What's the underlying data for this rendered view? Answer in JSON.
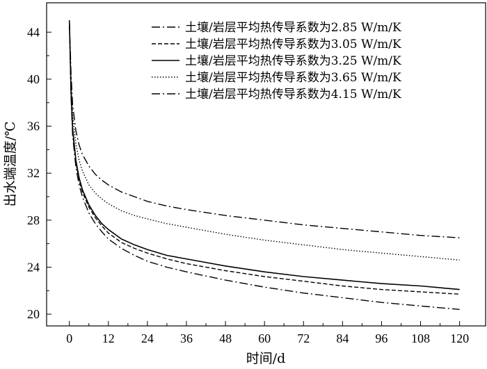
{
  "chart_data": {
    "type": "line",
    "title": "",
    "xlabel": "时间/d",
    "ylabel": "出水端温度/℃",
    "xlim": [
      -7,
      128
    ],
    "ylim": [
      19,
      46.5
    ],
    "x_ticks": [
      0,
      12,
      24,
      36,
      48,
      60,
      72,
      84,
      96,
      108,
      120
    ],
    "y_ticks": [
      20,
      24,
      28,
      32,
      36,
      40,
      44
    ],
    "grid": false,
    "legend_position": "top-right",
    "series": [
      {
        "name": "土壤/岩层平均热传导系数为2.85 W/m/K",
        "line_style": "dash-dot",
        "x": [
          0,
          0.5,
          1,
          2,
          3,
          4,
          6,
          8,
          10,
          12,
          16,
          20,
          24,
          30,
          36,
          48,
          60,
          72,
          84,
          96,
          108,
          120
        ],
        "y": [
          45.0,
          38.5,
          35.2,
          32.5,
          31.0,
          30.0,
          28.6,
          27.7,
          27.0,
          26.4,
          25.6,
          25.0,
          24.5,
          24.0,
          23.6,
          22.9,
          22.3,
          21.8,
          21.4,
          21.0,
          20.7,
          20.4
        ]
      },
      {
        "name": "土壤/岩层平均热传导系数为3.05 W/m/K",
        "line_style": "dashed",
        "x": [
          0,
          0.5,
          1,
          2,
          3,
          4,
          6,
          8,
          10,
          12,
          16,
          20,
          24,
          30,
          36,
          48,
          60,
          72,
          84,
          96,
          108,
          120
        ],
        "y": [
          45.0,
          38.8,
          35.6,
          32.9,
          31.4,
          30.4,
          29.1,
          28.2,
          27.5,
          26.9,
          26.1,
          25.6,
          25.2,
          24.7,
          24.3,
          23.7,
          23.2,
          22.8,
          22.4,
          22.1,
          21.9,
          21.7
        ]
      },
      {
        "name": "土壤/岩层平均热传导系数为3.25 W/m/K",
        "line_style": "solid",
        "x": [
          0,
          0.5,
          1,
          2,
          3,
          4,
          6,
          8,
          10,
          12,
          16,
          20,
          24,
          30,
          36,
          48,
          60,
          72,
          84,
          96,
          108,
          120
        ],
        "y": [
          45.0,
          39.0,
          35.8,
          33.1,
          31.6,
          30.6,
          29.3,
          28.4,
          27.7,
          27.2,
          26.4,
          25.9,
          25.5,
          25.0,
          24.7,
          24.1,
          23.6,
          23.2,
          22.9,
          22.6,
          22.4,
          22.1
        ]
      },
      {
        "name": "土壤/岩层平均热传导系数为3.65 W/m/K",
        "line_style": "dotted",
        "x": [
          0,
          0.5,
          1,
          2,
          3,
          4,
          6,
          8,
          10,
          12,
          16,
          20,
          24,
          30,
          36,
          48,
          60,
          72,
          84,
          96,
          108,
          120
        ],
        "y": [
          45.0,
          39.8,
          36.9,
          34.5,
          33.1,
          32.2,
          31.0,
          30.3,
          29.8,
          29.4,
          28.8,
          28.4,
          28.1,
          27.7,
          27.4,
          26.8,
          26.3,
          25.9,
          25.5,
          25.2,
          24.9,
          24.6
        ]
      },
      {
        "name": "土壤/岩层平均热传导系数为4.15 W/m/K",
        "line_style": "dash-dot",
        "x": [
          0,
          0.5,
          1,
          2,
          3,
          4,
          6,
          8,
          10,
          12,
          16,
          20,
          24,
          30,
          36,
          48,
          60,
          72,
          84,
          96,
          108,
          120
        ],
        "y": [
          45.0,
          40.5,
          37.8,
          35.6,
          34.4,
          33.6,
          32.6,
          31.9,
          31.4,
          31.0,
          30.4,
          30.0,
          29.6,
          29.2,
          28.9,
          28.4,
          28.0,
          27.6,
          27.3,
          27.0,
          26.7,
          26.5
        ]
      }
    ]
  }
}
